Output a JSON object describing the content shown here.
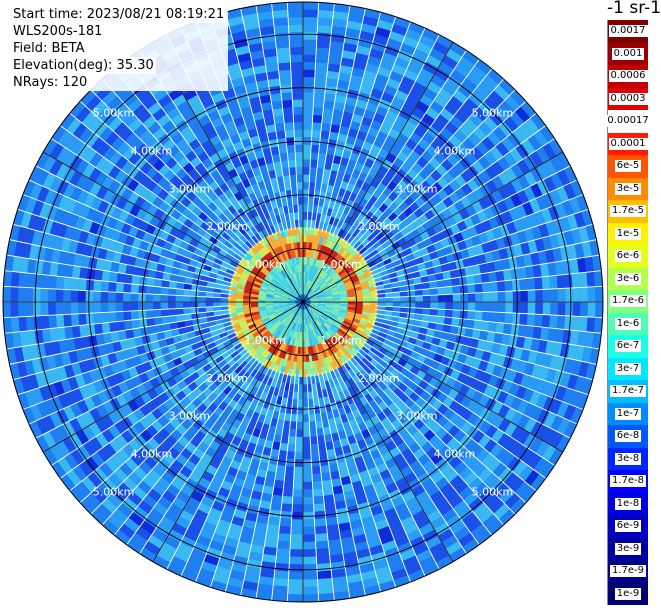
{
  "info": {
    "start_time": "Start time: 2023/08/21 08:19:21",
    "device": "WLS200s-181",
    "field": "Field: BETA",
    "elevation": "Elevation(deg): 35.30",
    "nrays": "NRays: 120"
  },
  "scope": {
    "nrays": 120,
    "max_range_km": 5.6,
    "ring_km": [
      1,
      2,
      3,
      4,
      5
    ],
    "ring_labels": [
      "1.00km",
      "2.00km",
      "3.00km",
      "4.00km",
      "5.00km"
    ],
    "colors": {
      "background": "#1f7ff0",
      "line": "#000000",
      "grid": "#ffffff"
    }
  },
  "colorbar": {
    "unit": "-1 sr-1",
    "labels": [
      "0.0017",
      "0.001",
      "0.0006",
      "0.0003",
      "0.00017",
      "0.0001",
      "6e-5",
      "3e-5",
      "1.7e-5",
      "1e-5",
      "6e-6",
      "3e-6",
      "1.7e-6",
      "1e-6",
      "6e-7",
      "3e-7",
      "1.7e-7",
      "1e-7",
      "6e-8",
      "3e-8",
      "1.7e-8",
      "1e-8",
      "6e-9",
      "3e-9",
      "1.7e-9",
      "1e-9"
    ],
    "colors": [
      "#800000",
      "#9a0000",
      "#c00000",
      "#e00000",
      "#ffffff",
      "#ff1a00",
      "#ff5500",
      "#ff8c00",
      "#ffbf00",
      "#fff200",
      "#e6ff1a",
      "#b3ff4d",
      "#80ff80",
      "#4dffb3",
      "#1affe6",
      "#00e6ff",
      "#00bfff",
      "#008cff",
      "#0059ff",
      "#0026ff",
      "#0000ff",
      "#0000e0",
      "#0000c0",
      "#0000a0",
      "#000088",
      "#000070"
    ]
  }
}
